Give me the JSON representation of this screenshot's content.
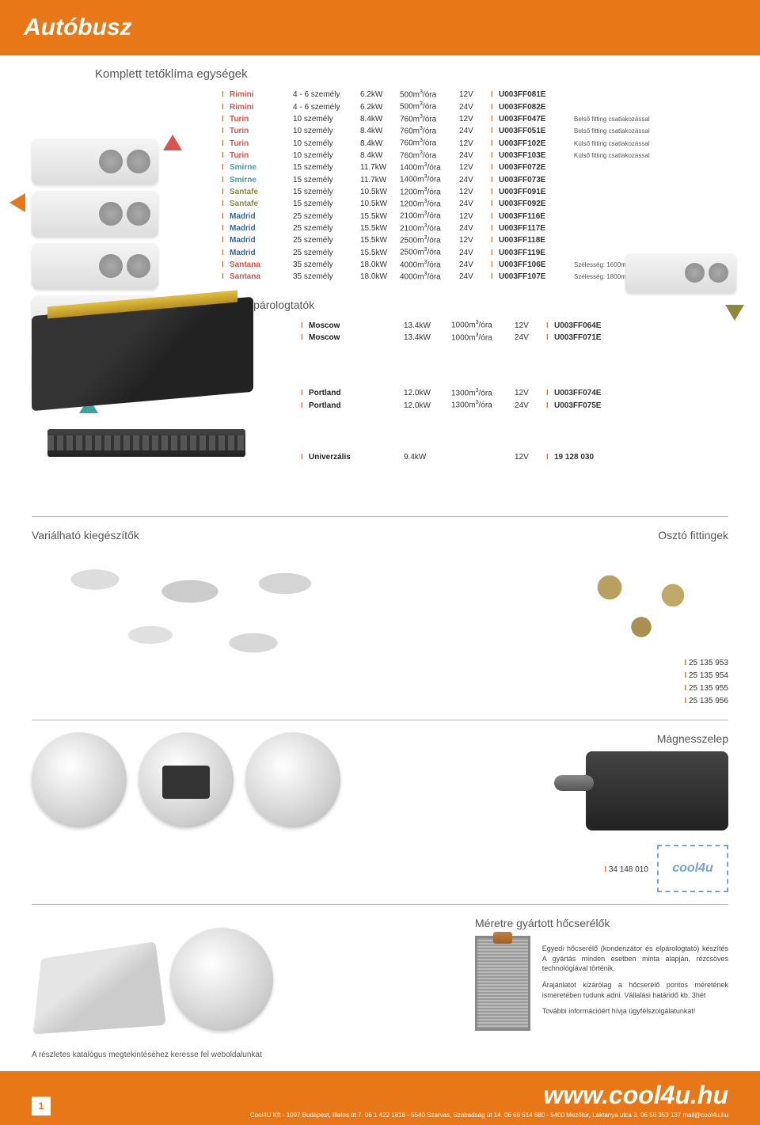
{
  "header": {
    "title": "Autóbusz"
  },
  "rooftop": {
    "title": "Komplett tetőklíma egységek",
    "rows": [
      {
        "name": "Rimini",
        "color": "red",
        "persons": "4 - 6 személy",
        "power": "6.2kW",
        "flow": "500m³/óra",
        "volt": "12V",
        "code": "U003FF081E",
        "note": ""
      },
      {
        "name": "Rimini",
        "color": "red",
        "persons": "4 - 6 személy",
        "power": "6.2kW",
        "flow": "500m³/óra",
        "volt": "24V",
        "code": "U003FF082E",
        "note": ""
      },
      {
        "name": "Turin",
        "color": "red",
        "persons": "10 személy",
        "power": "8.4kW",
        "flow": "760m³/óra",
        "volt": "12V",
        "code": "U003FF047E",
        "note": "Belső fitting csatlakozással"
      },
      {
        "name": "Turin",
        "color": "red",
        "persons": "10 személy",
        "power": "8.4kW",
        "flow": "760m³/óra",
        "volt": "24V",
        "code": "U003FF051E",
        "note": "Belső fitting csatlakozással"
      },
      {
        "name": "Turin",
        "color": "red",
        "persons": "10 személy",
        "power": "8.4kW",
        "flow": "760m³/óra",
        "volt": "12V",
        "code": "U003FF102E",
        "note": "Külső fitting csatlakozással"
      },
      {
        "name": "Turin",
        "color": "red",
        "persons": "10 személy",
        "power": "8.4kW",
        "flow": "760m³/óra",
        "volt": "24V",
        "code": "U003FF103E",
        "note": "Külső fitting csatlakozással"
      },
      {
        "name": "Smirne",
        "color": "teal",
        "persons": "15 személy",
        "power": "11.7kW",
        "flow": "1400m³/óra",
        "volt": "12V",
        "code": "U003FF072E",
        "note": ""
      },
      {
        "name": "Smirne",
        "color": "teal",
        "persons": "15 személy",
        "power": "11.7kW",
        "flow": "1400m³/óra",
        "volt": "24V",
        "code": "U003FF073E",
        "note": ""
      },
      {
        "name": "Santafe",
        "color": "olive",
        "persons": "15 személy",
        "power": "10.5kW",
        "flow": "1200m³/óra",
        "volt": "12V",
        "code": "U003FF091E",
        "note": ""
      },
      {
        "name": "Santafe",
        "color": "olive",
        "persons": "15 személy",
        "power": "10.5kW",
        "flow": "1200m³/óra",
        "volt": "24V",
        "code": "U003FF092E",
        "note": ""
      },
      {
        "name": "Madrid",
        "color": "blue",
        "persons": "25 személy",
        "power": "15.5kW",
        "flow": "2100m³/óra",
        "volt": "12V",
        "code": "U003FF116E",
        "note": ""
      },
      {
        "name": "Madrid",
        "color": "blue",
        "persons": "25 személy",
        "power": "15.5kW",
        "flow": "2100m³/óra",
        "volt": "24V",
        "code": "U003FF117E",
        "note": ""
      },
      {
        "name": "Madrid",
        "color": "blue",
        "persons": "25 személy",
        "power": "15.5kW",
        "flow": "2500m³/óra",
        "volt": "12V",
        "code": "U003FF118E",
        "note": ""
      },
      {
        "name": "Madrid",
        "color": "blue",
        "persons": "25 személy",
        "power": "15.5kW",
        "flow": "2500m³/óra",
        "volt": "24V",
        "code": "U003FF119E",
        "note": ""
      },
      {
        "name": "Santana",
        "color": "red",
        "persons": "35 személy",
        "power": "18.0kW",
        "flow": "4000m³/óra",
        "volt": "24V",
        "code": "U003FF106E",
        "note": "Szélesség: 1600mm"
      },
      {
        "name": "Santana",
        "color": "red",
        "persons": "35 személy",
        "power": "18.0kW",
        "flow": "4000m³/óra",
        "volt": "24V",
        "code": "U003FF107E",
        "note": "Szélesség: 1800mm"
      }
    ]
  },
  "evaporators": {
    "title": "Kiegészítő elpárologtatók",
    "group1": [
      {
        "name": "Moscow",
        "power": "13.4kW",
        "flow": "1000m³/óra",
        "volt": "12V",
        "code": "U003FF064E"
      },
      {
        "name": "Moscow",
        "power": "13.4kW",
        "flow": "1000m³/óra",
        "volt": "24V",
        "code": "U003FF071E"
      }
    ],
    "group2": [
      {
        "name": "Portland",
        "power": "12.0kW",
        "flow": "1300m³/óra",
        "volt": "12V",
        "code": "U003FF074E"
      },
      {
        "name": "Portland",
        "power": "12.0kW",
        "flow": "1300m³/óra",
        "volt": "24V",
        "code": "U003FF075E"
      }
    ],
    "group3": [
      {
        "name": "Univerzális",
        "power": "9.4kW",
        "flow": "",
        "volt": "12V",
        "code": "19 128 030"
      }
    ]
  },
  "variable": {
    "title": "Variálható kiegészítők"
  },
  "fittings": {
    "title": "Osztó fittingek",
    "codes": [
      "25 135 953",
      "25 135 954",
      "25 135 955",
      "25 135 956"
    ]
  },
  "valve": {
    "title": "Mágnesszelep",
    "code": "34 148 010",
    "logo": "cool4u"
  },
  "heatex": {
    "title": "Méretre gyártott hőcserélők",
    "p1": "Egyedi hőcserélő (kondenzátor és elpárologtató) készítés A gyártás minden esetben minta alapján, rézcsöves technológiával történik.",
    "p2": "Árajánlatot kizárólag a hőcserélő pontos méretének ismeretében tudunk adni. Vállalási határidő kb. 3hét",
    "p3": "További információért hívja ügyfélszolgálatunkat!"
  },
  "catalog_note": "A részletes katalógus megtekintéséhez keresse fel weboldalunkat",
  "footer": {
    "page": "1",
    "url": "www.cool4u.hu",
    "address": "Cool4U Kft - 1097 Budapest, Illatos út 7. 06 1 422 1818 - 5540 Szarvas, Szabadság út 14. 06 66 514 680 - 5400 Mezőtúr, Laktanya utca 3. 06 56 353 137  mail@cool4u.hu"
  }
}
